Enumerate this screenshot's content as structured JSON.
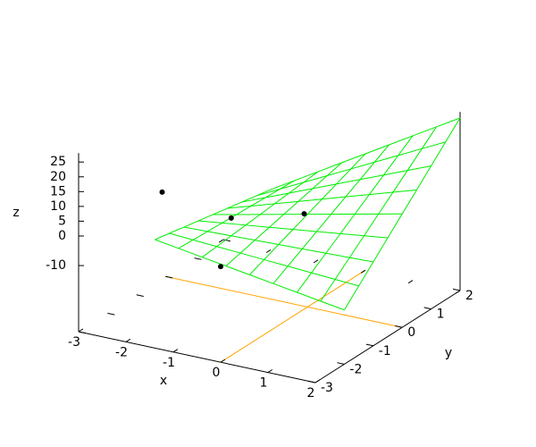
{
  "chart_data": {
    "type": "surface",
    "xlabel": "x",
    "ylabel": "y",
    "zlabel": "z",
    "xlim": [
      -3,
      2
    ],
    "ylim": [
      -3,
      2
    ],
    "zlim": [
      -14,
      28
    ],
    "xticks": [
      -3,
      -2,
      -1,
      0,
      1,
      2
    ],
    "yticks": [
      -3,
      -2,
      -1,
      0,
      1,
      2
    ],
    "zticks": [
      -10,
      0,
      5,
      10,
      15,
      20,
      25
    ],
    "x": [
      -2,
      -1.5,
      -1,
      -0.5,
      0,
      0.5,
      1,
      1.5,
      2
    ],
    "y": [
      -2,
      -1.5,
      -1,
      -0.5,
      0,
      0.5,
      1,
      1.5,
      2
    ],
    "z": [
      [
        -4,
        -5.25,
        -6.5,
        -7.75,
        -9,
        -10.25,
        -11.5,
        -12.75,
        -14
      ],
      [
        -5,
        -5.5,
        -6,
        -6.5,
        -7,
        -7.5,
        -8,
        -8.5,
        -9
      ],
      [
        -6,
        -5.75,
        -5.5,
        -5.25,
        -5,
        -4.75,
        -4.5,
        -4.25,
        -4
      ],
      [
        -7,
        -6,
        -5,
        -4,
        -3,
        -2,
        -1,
        0,
        1
      ],
      [
        -8,
        -6.25,
        -4.5,
        -2.75,
        -1,
        0.75,
        2.5,
        4.25,
        6
      ],
      [
        -9,
        -6.5,
        -4,
        -1.5,
        1,
        3.5,
        6,
        8.5,
        11
      ],
      [
        -10,
        -6.75,
        -3.5,
        -0.25,
        3,
        6.25,
        9.5,
        12.75,
        16
      ],
      [
        -11,
        -7,
        -3,
        1,
        5,
        9,
        13,
        17,
        21
      ],
      [
        -12,
        -7.25,
        -2.5,
        2.25,
        7,
        11.75,
        16.5,
        21.25,
        26
      ]
    ],
    "color": "#00ee00",
    "points": {
      "x": [
        -2,
        -1,
        1,
        0
      ],
      "y": [
        -1.75,
        -1,
        -1.75,
        -3
      ],
      "z": [
        10.5,
        0.5,
        13.5,
        0
      ],
      "color": "#000000"
    },
    "zeroaxis_color": "#ffa500"
  }
}
